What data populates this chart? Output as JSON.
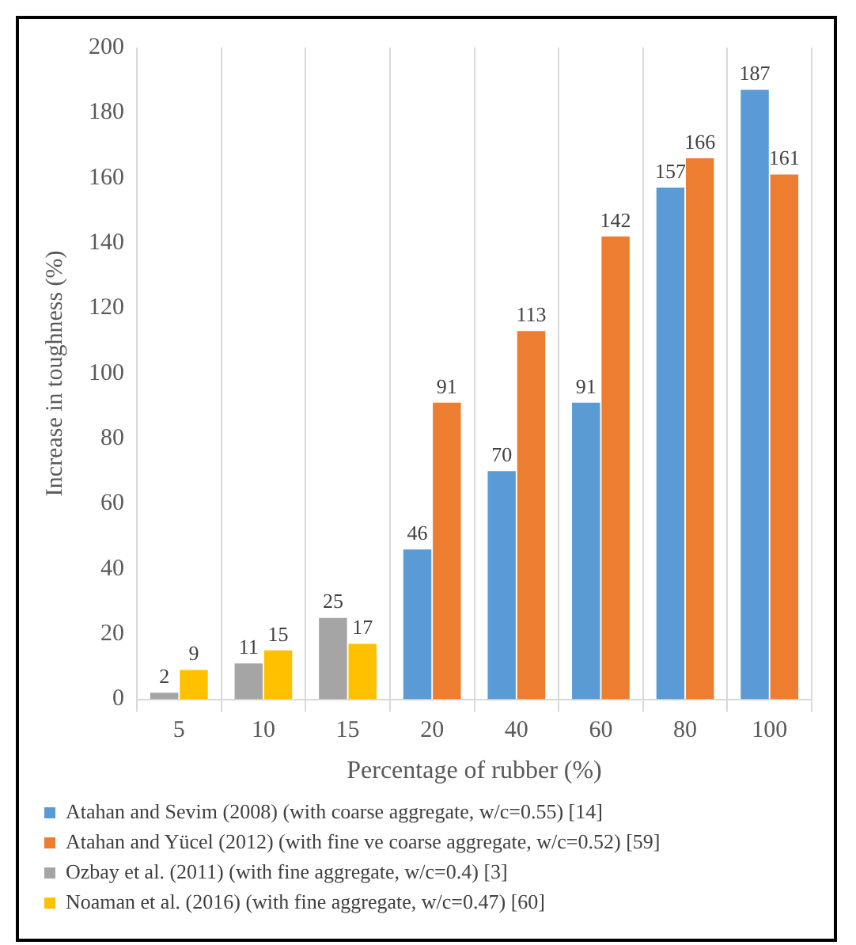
{
  "chart_data": {
    "type": "bar",
    "xlabel": "Percentage of rubber (%)",
    "ylabel": "Increase in toughness (%)",
    "categories": [
      "5",
      "10",
      "15",
      "20",
      "40",
      "60",
      "80",
      "100"
    ],
    "series": [
      {
        "name": "Atahan and Sevim (2008) (with coarse aggregate, w/c=0.55) [14]",
        "color": "#5b9bd5",
        "values": [
          null,
          null,
          null,
          46,
          70,
          91,
          157,
          187
        ]
      },
      {
        "name": "Atahan and Yücel (2012) (with fine ve coarse aggregate, w/c=0.52) [59]",
        "color": "#ed7d31",
        "values": [
          null,
          null,
          null,
          91,
          113,
          142,
          166,
          161
        ]
      },
      {
        "name": "Ozbay et al. (2011) (with fine aggregate, w/c=0.4) [3]",
        "color": "#a5a5a5",
        "values": [
          2,
          11,
          25,
          null,
          null,
          null,
          null,
          null
        ]
      },
      {
        "name": "Noaman et al. (2016) (with fine aggregate, w/c=0.47) [60]",
        "color": "#ffc000",
        "values": [
          9,
          15,
          17,
          null,
          null,
          null,
          null,
          null
        ]
      }
    ],
    "ylim": [
      0,
      200
    ],
    "yticks": [
      0,
      20,
      40,
      60,
      80,
      100,
      120,
      140,
      160,
      180,
      200
    ],
    "grid": "x",
    "legend": "bottom",
    "data_labels": true
  }
}
